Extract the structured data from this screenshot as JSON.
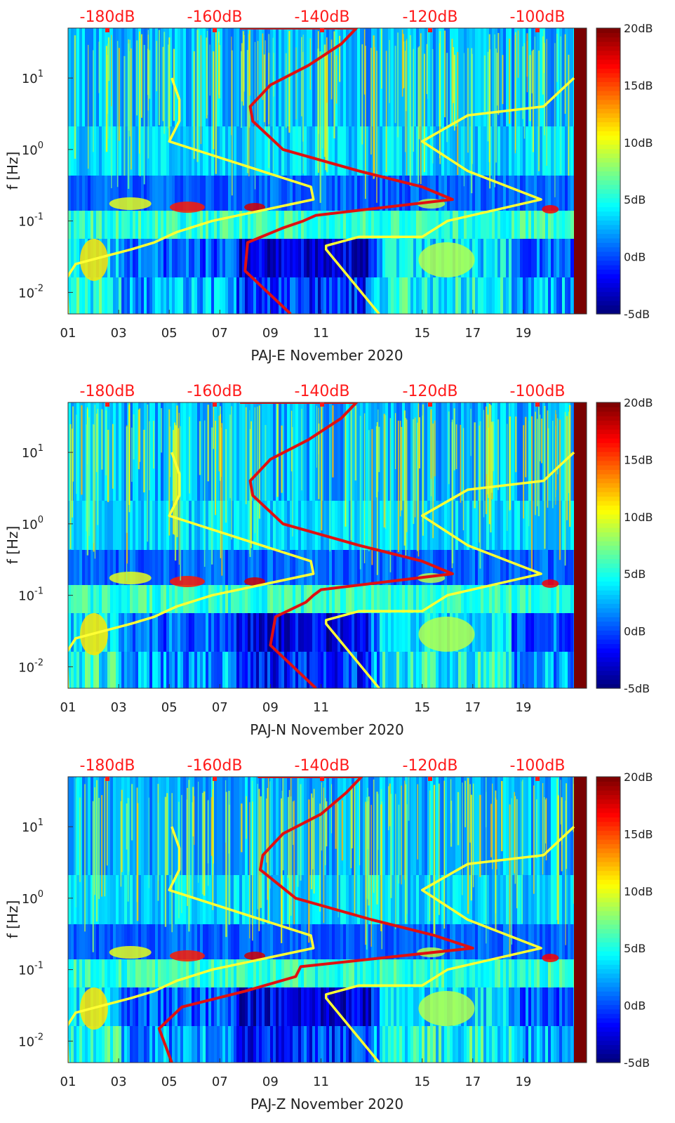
{
  "chart_data": [
    {
      "type": "heatmap",
      "title": "",
      "xlabel": "PAJ-E November 2020",
      "ylabel": "f [Hz]",
      "x_tick_labels": [
        "01",
        "03",
        "05",
        "07",
        "09",
        "11",
        "15",
        "17",
        "19"
      ],
      "y_tick_labels": [
        "10^-2",
        "10^-1",
        "10^0",
        "10^1"
      ],
      "top_axis_labels": [
        "-180dB",
        "-160dB",
        "-140dB",
        "-120dB",
        "-100dB"
      ],
      "colorbar": {
        "labels": [
          "20dB",
          "15dB",
          "10dB",
          "5dB",
          "0dB",
          "-5dB"
        ],
        "range": [
          -5,
          20
        ]
      },
      "series": [
        {
          "name": "yellow-noise-model-left",
          "color": "#ffff33",
          "x": [
            1.0,
            0.95,
            1.3,
            3.5,
            4.4,
            5.3,
            6.7,
            10.7,
            10.6,
            5.0,
            5.4,
            5.4,
            5.1
          ],
          "y": [
            0.005,
            0.016,
            0.025,
            0.04,
            0.05,
            0.07,
            0.1,
            0.2,
            0.3,
            1.3,
            2.5,
            5.0,
            10.0
          ]
        },
        {
          "name": "yellow-noise-model-right",
          "color": "#ffff33",
          "x": [
            13.3,
            11.2,
            11.2,
            12.5,
            15.0,
            16.0,
            19.7,
            16.8,
            15.0,
            16.8,
            19.8,
            21.0
          ],
          "y": [
            0.005,
            0.04,
            0.045,
            0.06,
            0.06,
            0.1,
            0.2,
            0.5,
            1.3,
            3.0,
            4.0,
            10.0
          ]
        },
        {
          "name": "red-psd-curve",
          "color": "#e01010",
          "x": [
            9.8,
            8.0,
            8.1,
            9.5,
            10.3,
            10.8,
            16.2,
            15.0,
            12.5,
            9.5,
            8.3,
            8.2,
            9.0,
            10.5,
            11.8,
            12.4,
            7.8
          ],
          "y": [
            0.005,
            0.02,
            0.05,
            0.08,
            0.1,
            0.12,
            0.2,
            0.3,
            0.5,
            1.0,
            2.5,
            4.0,
            8.0,
            15.0,
            30.0,
            50.0,
            50.0
          ]
        }
      ]
    },
    {
      "type": "heatmap",
      "title": "",
      "xlabel": "PAJ-N November 2020",
      "ylabel": "f [Hz]",
      "x_tick_labels": [
        "01",
        "03",
        "05",
        "07",
        "09",
        "11",
        "15",
        "17",
        "19"
      ],
      "y_tick_labels": [
        "10^-2",
        "10^-1",
        "10^0",
        "10^1"
      ],
      "top_axis_labels": [
        "-180dB",
        "-160dB",
        "-140dB",
        "-120dB",
        "-100dB"
      ],
      "colorbar": {
        "labels": [
          "20dB",
          "15dB",
          "10dB",
          "5dB",
          "0dB",
          "-5dB"
        ],
        "range": [
          -5,
          20
        ]
      },
      "series": [
        {
          "name": "yellow-noise-model-left",
          "color": "#ffff33",
          "x": [
            1.0,
            0.95,
            1.3,
            3.5,
            4.4,
            5.3,
            6.7,
            10.7,
            10.6,
            5.0,
            5.4,
            5.4,
            5.1
          ],
          "y": [
            0.005,
            0.016,
            0.025,
            0.04,
            0.05,
            0.07,
            0.1,
            0.2,
            0.3,
            1.3,
            2.5,
            5.0,
            10.0
          ]
        },
        {
          "name": "yellow-noise-model-right",
          "color": "#ffff33",
          "x": [
            13.3,
            11.2,
            11.2,
            12.5,
            15.0,
            16.0,
            19.7,
            16.8,
            15.0,
            16.8,
            19.8,
            21.0
          ],
          "y": [
            0.005,
            0.04,
            0.045,
            0.06,
            0.06,
            0.1,
            0.2,
            0.5,
            1.3,
            3.0,
            4.0,
            10.0
          ]
        },
        {
          "name": "red-psd-curve",
          "color": "#e01010",
          "x": [
            10.8,
            9.0,
            9.2,
            10.4,
            10.7,
            11.0,
            16.2,
            15.0,
            12.5,
            9.5,
            8.3,
            8.2,
            9.0,
            10.5,
            11.8,
            12.4,
            7.8
          ],
          "y": [
            0.005,
            0.02,
            0.05,
            0.08,
            0.1,
            0.12,
            0.2,
            0.3,
            0.5,
            1.0,
            2.5,
            4.0,
            8.0,
            15.0,
            30.0,
            50.0,
            50.0
          ]
        }
      ]
    },
    {
      "type": "heatmap",
      "title": "",
      "xlabel": "PAJ-Z November 2020",
      "ylabel": "f [Hz]",
      "x_tick_labels": [
        "01",
        "03",
        "05",
        "07",
        "09",
        "11",
        "15",
        "17",
        "19"
      ],
      "y_tick_labels": [
        "10^-2",
        "10^-1",
        "10^0",
        "10^1"
      ],
      "top_axis_labels": [
        "-180dB",
        "-160dB",
        "-140dB",
        "-120dB",
        "-100dB"
      ],
      "colorbar": {
        "labels": [
          "20dB",
          "15dB",
          "10dB",
          "5dB",
          "0dB",
          "-5dB"
        ],
        "range": [
          -5,
          20
        ]
      },
      "series": [
        {
          "name": "yellow-noise-model-left",
          "color": "#ffff33",
          "x": [
            1.0,
            0.95,
            1.3,
            3.5,
            4.4,
            5.3,
            6.7,
            10.7,
            10.6,
            5.0,
            5.4,
            5.4,
            5.1
          ],
          "y": [
            0.005,
            0.016,
            0.025,
            0.04,
            0.05,
            0.07,
            0.1,
            0.2,
            0.3,
            1.3,
            2.5,
            5.0,
            10.0
          ]
        },
        {
          "name": "yellow-noise-model-right",
          "color": "#ffff33",
          "x": [
            13.3,
            11.2,
            11.2,
            12.5,
            15.0,
            16.0,
            19.7,
            16.8,
            15.0,
            16.8,
            19.8,
            21.0
          ],
          "y": [
            0.005,
            0.04,
            0.045,
            0.06,
            0.06,
            0.1,
            0.2,
            0.5,
            1.3,
            3.0,
            4.0,
            10.0
          ]
        },
        {
          "name": "red-psd-curve",
          "color": "#e01010",
          "x": [
            5.1,
            4.6,
            5.5,
            8.0,
            10.0,
            10.2,
            17.0,
            15.5,
            13.0,
            10.0,
            8.6,
            8.7,
            9.5,
            11.0,
            12.0,
            12.6,
            8.5
          ],
          "y": [
            0.005,
            0.015,
            0.03,
            0.05,
            0.08,
            0.11,
            0.2,
            0.3,
            0.5,
            1.0,
            2.5,
            4.0,
            8.0,
            15.0,
            30.0,
            50.0,
            50.0
          ]
        }
      ]
    }
  ]
}
